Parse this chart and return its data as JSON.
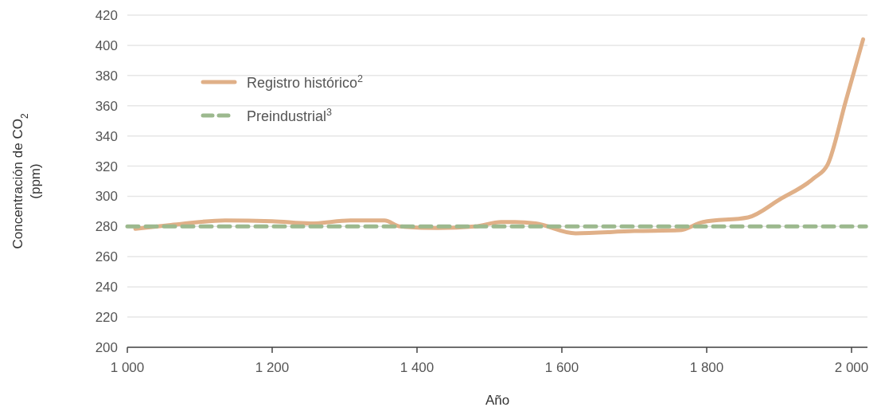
{
  "chart_data": {
    "type": "line",
    "xlabel": "Año",
    "ylabel": "Concentración de CO$_{2}$ (ppm)",
    "xlim": [
      1000,
      2022
    ],
    "xticks": [
      {
        "value": 1000,
        "label": "1 000"
      },
      {
        "value": 1200,
        "label": "1 200"
      },
      {
        "value": 1400,
        "label": "1 400"
      },
      {
        "value": 1600,
        "label": "1 600"
      },
      {
        "value": 1800,
        "label": "1 800"
      },
      {
        "value": 2000,
        "label": "2 000"
      }
    ],
    "ylim": [
      200,
      420
    ],
    "yticks": [
      200,
      220,
      240,
      260,
      280,
      300,
      320,
      340,
      360,
      380,
      400,
      420
    ],
    "grid": "y",
    "legend": "top left",
    "series": [
      {
        "name": "Registro histórico$^{2}$",
        "color": "#e0b088",
        "line_style": "solid",
        "x": [
          1011,
          1060,
          1135,
          1200,
          1253,
          1308,
          1355,
          1377,
          1429,
          1480,
          1516,
          1535,
          1564,
          1619,
          1700,
          1762,
          1795,
          1857,
          1901,
          1948,
          1967,
          1992,
          2016
        ],
        "values": [
          278.5,
          281,
          284,
          283.5,
          282,
          284,
          284,
          280,
          279,
          280,
          283,
          283,
          282,
          275.5,
          277,
          277.5,
          283,
          286,
          298,
          312,
          321,
          363,
          404
        ]
      },
      {
        "name": "Preindustrial$^{3}$",
        "color": "#9cb98e",
        "line_style": "dashed",
        "x": [
          1000,
          2020
        ],
        "values": [
          280,
          280
        ]
      }
    ]
  }
}
